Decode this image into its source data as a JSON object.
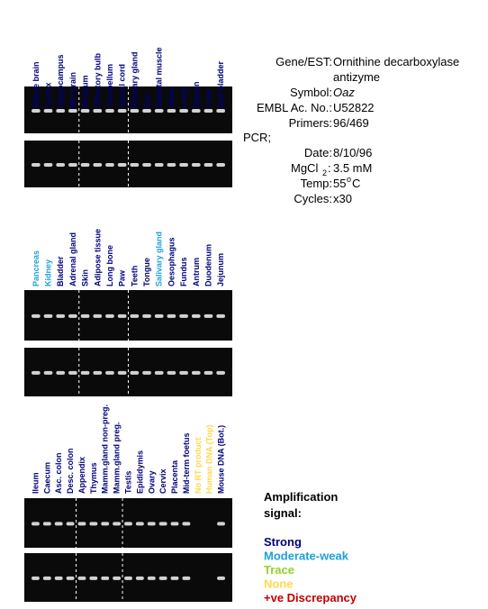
{
  "panels": [
    {
      "lanes": [
        {
          "label": "Whole brain",
          "color": "#00007a"
        },
        {
          "label": "Cortex",
          "color": "#00007a"
        },
        {
          "label": "Hippocampus",
          "color": "#00007a"
        },
        {
          "label": "Mid brain",
          "color": "#00007a"
        },
        {
          "label": "Striatum",
          "color": "#00007a"
        },
        {
          "label": "Olfactory bulb",
          "color": "#00007a"
        },
        {
          "label": "Cerebellum",
          "color": "#00007a"
        },
        {
          "label": "Spinal cord",
          "color": "#00007a"
        },
        {
          "label": "Pituitary gland",
          "color": "#00007a"
        },
        {
          "label": "Eye",
          "color": "#00007a"
        },
        {
          "label": "Skeletal muscle",
          "color": "#00007a"
        },
        {
          "label": "Heart",
          "color": "#00007a"
        },
        {
          "label": "Lung",
          "color": "#00007a"
        },
        {
          "label": "Spleen",
          "color": "#00007a"
        },
        {
          "label": "Liver",
          "color": "#00007a"
        },
        {
          "label": "Gall bladder",
          "color": "#00007a"
        }
      ]
    },
    {
      "lanes": [
        {
          "label": "Pancreas",
          "color": "#1fa0d8"
        },
        {
          "label": "Kidney",
          "color": "#1fa0d8"
        },
        {
          "label": "Bladder",
          "color": "#00007a"
        },
        {
          "label": "Adrenal gland",
          "color": "#00007a"
        },
        {
          "label": "Skin",
          "color": "#00007a"
        },
        {
          "label": "Adipose tissue",
          "color": "#00007a"
        },
        {
          "label": "Long bone",
          "color": "#00007a"
        },
        {
          "label": "Paw",
          "color": "#00007a"
        },
        {
          "label": "Teeth",
          "color": "#00007a"
        },
        {
          "label": "Tongue",
          "color": "#00007a"
        },
        {
          "label": "Salivary gland",
          "color": "#1fa0d8"
        },
        {
          "label": "Oesophagus",
          "color": "#00007a"
        },
        {
          "label": "Fundus",
          "color": "#00007a"
        },
        {
          "label": "Antrum",
          "color": "#00007a"
        },
        {
          "label": "Duodenum",
          "color": "#00007a"
        },
        {
          "label": "Jejunum",
          "color": "#00007a"
        }
      ]
    },
    {
      "lanes": [
        {
          "label": "Ileum",
          "color": "#00007a"
        },
        {
          "label": "Caecum",
          "color": "#00007a"
        },
        {
          "label": "Asc. colon",
          "color": "#00007a"
        },
        {
          "label": "Desc. colon",
          "color": "#00007a"
        },
        {
          "label": "Appendix",
          "color": "#00007a"
        },
        {
          "label": "Thymus",
          "color": "#00007a"
        },
        {
          "label": "Mamm.gland non-preg.",
          "color": "#00007a"
        },
        {
          "label": "Mamm.gland preg.",
          "color": "#00007a"
        },
        {
          "label": "Testis",
          "color": "#00007a"
        },
        {
          "label": "Epididymis",
          "color": "#00007a"
        },
        {
          "label": "Ovary",
          "color": "#00007a"
        },
        {
          "label": "Cervix",
          "color": "#00007a"
        },
        {
          "label": "Placenta",
          "color": "#00007a"
        },
        {
          "label": "Mid-term foetus",
          "color": "#00007a"
        },
        {
          "label": "No RT product",
          "color": "#ffd84d"
        },
        {
          "label": "Human DNA (Top)",
          "color": "#ffd84d"
        },
        {
          "label": "Mouse DNA (Bot.)",
          "color": "#00007a"
        }
      ]
    }
  ],
  "info": {
    "gene_key": "Gene/EST:",
    "gene_value_1": "Ornithine decarboxylase",
    "gene_value_2": "antizyme",
    "symbol_key": "Symbol:",
    "symbol_value": "Oaz",
    "embl_key": "EMBL Ac. No.:",
    "embl_value": "U52822",
    "primers_key": "Primers:",
    "primers_value": "96/469",
    "pcr": "PCR;",
    "date_key": "Date:",
    "date_value": "8/10/96",
    "mg_key_1": "MgCl",
    "mg_key_2": "2",
    "mg_key_3": ":",
    "mg_value": "3.5 mM",
    "temp_key": "Temp:",
    "temp_value_1": "55",
    "temp_value_2": "o",
    "temp_value_3": "C",
    "cycles_key": "Cycles:",
    "cycles_value": "x30"
  },
  "legend": {
    "title_1": "Amplification",
    "title_2": "signal:",
    "items": [
      {
        "label": "Strong",
        "color": "#00007a"
      },
      {
        "label": "Moderate-weak",
        "color": "#1fa0d8"
      },
      {
        "label": "Trace",
        "color": "#8fd12b"
      },
      {
        "label": "None",
        "color": "#ffd84d"
      },
      {
        "label": "+ve Discrepancy",
        "color": "#c00000"
      }
    ]
  }
}
